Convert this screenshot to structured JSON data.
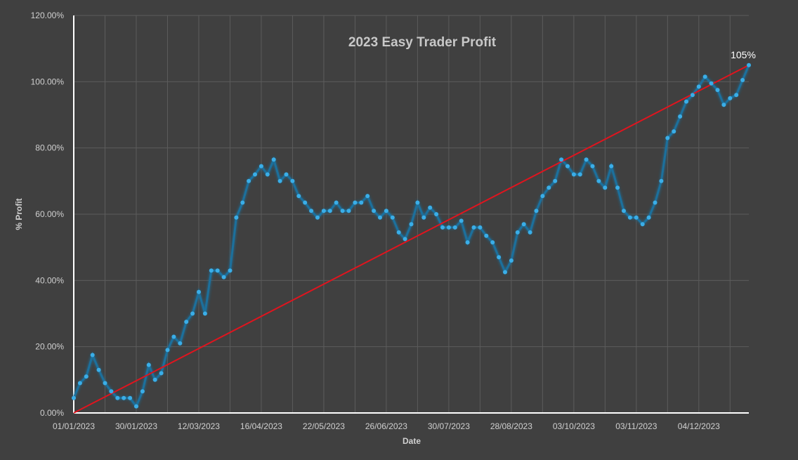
{
  "chart_data": {
    "type": "line",
    "title": "2023 Easy Trader Profit",
    "xlabel": "Date",
    "ylabel": "% Profit",
    "ylim": [
      0,
      120
    ],
    "y_ticks": [
      "0.00%",
      "20.00%",
      "40.00%",
      "60.00%",
      "80.00%",
      "100.00%",
      "120.00%"
    ],
    "x_ticks": [
      "01/01/2023",
      "30/01/2023",
      "12/03/2023",
      "16/04/2023",
      "22/05/2023",
      "26/06/2023",
      "30/07/2023",
      "28/08/2023",
      "03/10/2023",
      "03/11/2023",
      "04/12/2023"
    ],
    "grid": true,
    "legend": "none",
    "end_label": "105%",
    "colors": {
      "series": "#3aaee8",
      "series_line": "#1c6f9c",
      "trend": "#e0141e",
      "axis": "#ffffff",
      "grid": "#5c5c5c",
      "background": "#404040"
    },
    "series": [
      {
        "values": [
          4.5,
          9,
          11,
          17.5,
          13,
          9,
          6.5,
          4.5,
          4.5,
          4.5,
          2,
          6.5,
          14.5,
          10,
          12,
          19,
          23,
          21,
          27.5,
          30,
          36.5,
          30,
          43,
          43,
          41,
          43,
          59,
          63.5,
          70,
          72,
          74.5,
          72,
          76.5,
          70,
          72,
          70,
          65.5,
          63.5,
          61,
          59,
          61,
          61,
          63.5,
          61,
          61,
          63.5,
          63.5,
          65.5,
          61,
          59,
          61,
          59,
          54.5,
          52.5,
          57,
          63.5,
          59,
          62,
          60,
          56,
          56,
          56,
          58,
          51.5,
          56,
          56,
          53.5,
          51.5,
          47,
          42.5,
          46,
          54.5,
          57,
          54.5,
          61,
          65.5,
          68,
          70,
          76.5,
          74.5,
          72,
          72,
          76.5,
          74.5,
          70,
          68,
          74.5,
          68,
          61,
          59,
          59,
          57,
          59,
          63.5,
          70,
          83,
          85,
          89.5,
          94,
          96,
          98.5,
          101.5,
          99.5,
          97.5,
          93,
          95,
          96,
          100.5,
          105
        ]
      },
      {
        "type": "trendline",
        "values": [
          0,
          105
        ]
      }
    ]
  }
}
